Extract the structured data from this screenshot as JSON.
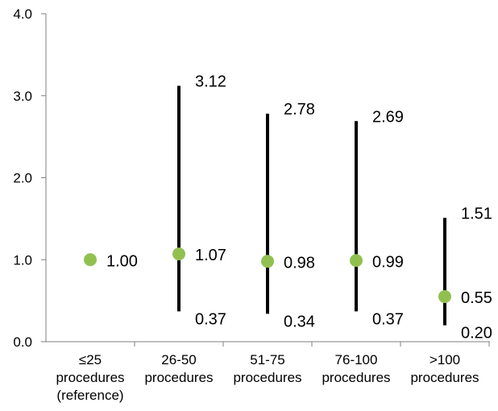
{
  "chart_data": {
    "type": "scatter",
    "title": "",
    "xlabel": "",
    "ylabel": "",
    "ylim": [
      0,
      4
    ],
    "yticks": [
      "0.0",
      "1.0",
      "2.0",
      "3.0",
      "4.0"
    ],
    "grid": false,
    "legend": "none",
    "point_color": "#92c050",
    "bar_color": "#000000",
    "categories": [
      [
        "≤25",
        "procedures",
        "(reference)"
      ],
      [
        "26-50",
        "procedures"
      ],
      [
        "51-75",
        "procedures"
      ],
      [
        "76-100",
        "procedures"
      ],
      [
        ">100",
        "procedures"
      ]
    ],
    "points": [
      {
        "estimate": 1.0,
        "lower": null,
        "upper": null,
        "estimate_label": "1.00",
        "lower_label": "",
        "upper_label": ""
      },
      {
        "estimate": 1.07,
        "lower": 0.37,
        "upper": 3.12,
        "estimate_label": "1.07",
        "lower_label": "0.37",
        "upper_label": "3.12"
      },
      {
        "estimate": 0.98,
        "lower": 0.34,
        "upper": 2.78,
        "estimate_label": "0.98",
        "lower_label": "0.34",
        "upper_label": "2.78"
      },
      {
        "estimate": 0.99,
        "lower": 0.37,
        "upper": 2.69,
        "estimate_label": "0.99",
        "lower_label": "0.37",
        "upper_label": "2.69"
      },
      {
        "estimate": 0.55,
        "lower": 0.2,
        "upper": 1.51,
        "estimate_label": "0.55",
        "lower_label": "0.20",
        "upper_label": "1.51"
      }
    ]
  }
}
